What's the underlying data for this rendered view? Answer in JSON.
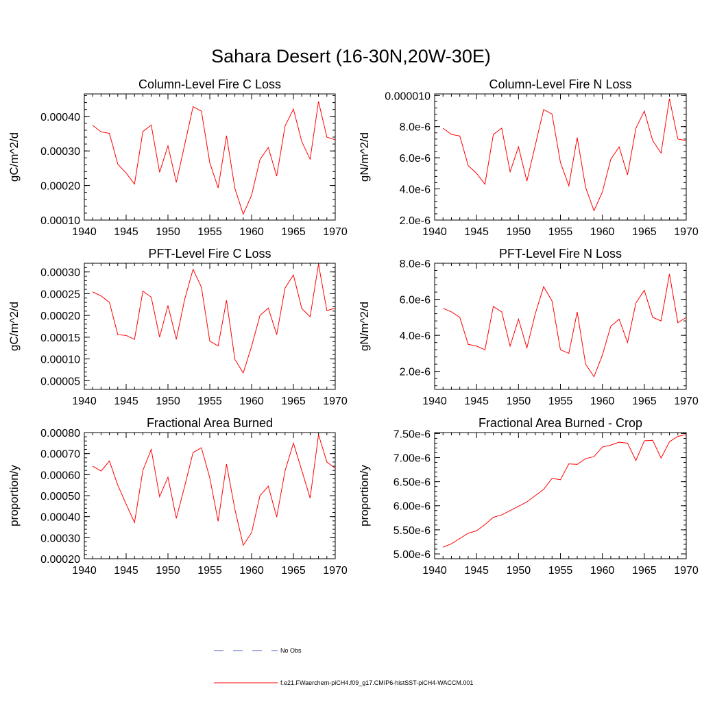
{
  "figure": {
    "title": "Sahara Desert (16-30N,20W-30E)"
  },
  "legend": {
    "obs": {
      "label": "No Obs",
      "color": "#4a5fc1"
    },
    "model": {
      "label": "f.e21.FWaerchem-piCH4.f09_g17.CMIP6-histSST-piCH4-WACCM.001",
      "color": "#ff0000"
    }
  },
  "chart_data": [
    {
      "type": "line",
      "title": "Column-Level Fire C Loss",
      "ylabel": "gC/m^2/d",
      "xlim": [
        1940,
        1970
      ],
      "ylim": [
        0.0001,
        0.000465
      ],
      "xticks": [
        1940,
        1945,
        1950,
        1955,
        1960,
        1965,
        1970
      ],
      "yticks": [
        0.0001,
        0.0002,
        0.0003,
        0.0004
      ],
      "ytick_labels": [
        "0.00010",
        "0.00020",
        "0.00030",
        "0.00040"
      ],
      "y_minor_step": 2e-05,
      "series": [
        {
          "color": "#ff0000",
          "x": [
            1941,
            1942,
            1943,
            1944,
            1945,
            1946,
            1947,
            1948,
            1949,
            1950,
            1951,
            1952,
            1953,
            1954,
            1955,
            1956,
            1957,
            1958,
            1959,
            1960,
            1961,
            1962,
            1963,
            1964,
            1965,
            1966,
            1967,
            1968,
            1969,
            1970
          ],
          "values": [
            0.000374,
            0.000355,
            0.000351,
            0.000262,
            0.000236,
            0.000204,
            0.000356,
            0.000375,
            0.000238,
            0.000315,
            0.000209,
            0.000318,
            0.000428,
            0.000415,
            0.000266,
            0.000193,
            0.000344,
            0.000192,
            0.000117,
            0.000172,
            0.000275,
            0.00031,
            0.000227,
            0.000372,
            0.000421,
            0.000327,
            0.000276,
            0.000443,
            0.00034,
            0.000332
          ]
        }
      ]
    },
    {
      "type": "line",
      "title": "Column-Level Fire N Loss",
      "ylabel": "gN/m^2/d",
      "xlim": [
        1940,
        1970
      ],
      "ylim": [
        2e-06,
        1.01e-05
      ],
      "xticks": [
        1940,
        1945,
        1950,
        1955,
        1960,
        1965,
        1970
      ],
      "yticks": [
        2e-06,
        4e-06,
        6e-06,
        8e-06,
        1e-05
      ],
      "ytick_labels": [
        "2.0e-6",
        "4.0e-6",
        "6.0e-6",
        "8.0e-6",
        "0.000010"
      ],
      "y_minor_step": 4e-07,
      "series": [
        {
          "color": "#ff0000",
          "x": [
            1941,
            1942,
            1943,
            1944,
            1945,
            1946,
            1947,
            1948,
            1949,
            1950,
            1951,
            1952,
            1953,
            1954,
            1955,
            1956,
            1957,
            1958,
            1959,
            1960,
            1961,
            1962,
            1963,
            1964,
            1965,
            1966,
            1967,
            1968,
            1969,
            1970
          ],
          "values": [
            7.9e-06,
            7.5e-06,
            7.4e-06,
            5.5e-06,
            5e-06,
            4.3e-06,
            7.5e-06,
            7.9e-06,
            5.1e-06,
            6.7e-06,
            4.5e-06,
            6.8e-06,
            9.1e-06,
            8.8e-06,
            5.7e-06,
            4.2e-06,
            7.3e-06,
            4.1e-06,
            2.6e-06,
            3.8e-06,
            5.9e-06,
            6.7e-06,
            4.9e-06,
            7.9e-06,
            9e-06,
            7.1e-06,
            6.3e-06,
            9.8e-06,
            7.2e-06,
            7.1e-06
          ]
        }
      ]
    },
    {
      "type": "line",
      "title": "PFT-Level Fire C Loss",
      "ylabel": "gC/m^2/d",
      "xlim": [
        1940,
        1970
      ],
      "ylim": [
        3e-05,
        0.00032
      ],
      "xticks": [
        1940,
        1945,
        1950,
        1955,
        1960,
        1965,
        1970
      ],
      "yticks": [
        5e-05,
        0.0001,
        0.00015,
        0.0002,
        0.00025,
        0.0003
      ],
      "ytick_labels": [
        "0.00005",
        "0.00010",
        "0.00015",
        "0.00020",
        "0.00025",
        "0.00030"
      ],
      "y_minor_step": 1e-05,
      "series": [
        {
          "color": "#ff0000",
          "x": [
            1941,
            1942,
            1943,
            1944,
            1945,
            1946,
            1947,
            1948,
            1949,
            1950,
            1951,
            1952,
            1953,
            1954,
            1955,
            1956,
            1957,
            1958,
            1959,
            1960,
            1961,
            1962,
            1963,
            1964,
            1965,
            1966,
            1967,
            1968,
            1969,
            1970
          ],
          "values": [
            0.000254,
            0.000245,
            0.00023,
            0.000156,
            0.000154,
            0.000145,
            0.000256,
            0.000242,
            0.00015,
            0.000223,
            0.000145,
            0.000237,
            0.000306,
            0.000265,
            0.000141,
            0.00013,
            0.000235,
            9.9e-05,
            6.8e-05,
            0.000129,
            0.0002,
            0.000217,
            0.000156,
            0.000263,
            0.000293,
            0.000216,
            0.000197,
            0.000318,
            0.000211,
            0.000217
          ]
        }
      ]
    },
    {
      "type": "line",
      "title": "PFT-Level Fire N Loss",
      "ylabel": "gN/m^2/d",
      "xlim": [
        1940,
        1970
      ],
      "ylim": [
        1e-06,
        8e-06
      ],
      "xticks": [
        1940,
        1945,
        1950,
        1955,
        1960,
        1965,
        1970
      ],
      "yticks": [
        2e-06,
        4e-06,
        6e-06,
        8e-06
      ],
      "ytick_labels": [
        "2.0e-6",
        "4.0e-6",
        "6.0e-6",
        "8.0e-6"
      ],
      "y_minor_step": 4e-07,
      "series": [
        {
          "color": "#ff0000",
          "x": [
            1941,
            1942,
            1943,
            1944,
            1945,
            1946,
            1947,
            1948,
            1949,
            1950,
            1951,
            1952,
            1953,
            1954,
            1955,
            1956,
            1957,
            1958,
            1959,
            1960,
            1961,
            1962,
            1963,
            1964,
            1965,
            1966,
            1967,
            1968,
            1969,
            1970
          ],
          "values": [
            5.5e-06,
            5.3e-06,
            5e-06,
            3.5e-06,
            3.4e-06,
            3.2e-06,
            5.6e-06,
            5.3e-06,
            3.4e-06,
            4.9e-06,
            3.3e-06,
            5.2e-06,
            6.7e-06,
            5.9e-06,
            3.2e-06,
            3e-06,
            5.3e-06,
            2.4e-06,
            1.7e-06,
            2.9e-06,
            4.5e-06,
            4.9e-06,
            3.6e-06,
            5.8e-06,
            6.5e-06,
            5e-06,
            4.8e-06,
            7.4e-06,
            4.7e-06,
            5e-06
          ]
        }
      ]
    },
    {
      "type": "line",
      "title": "Fractional Area Burned",
      "ylabel": "proportion/y",
      "xlim": [
        1940,
        1970
      ],
      "ylim": [
        0.0002,
        0.0008
      ],
      "xticks": [
        1940,
        1945,
        1950,
        1955,
        1960,
        1965,
        1970
      ],
      "yticks": [
        0.0002,
        0.0003,
        0.0004,
        0.0005,
        0.0006,
        0.0007,
        0.0008
      ],
      "ytick_labels": [
        "0.00020",
        "0.00030",
        "0.00040",
        "0.00050",
        "0.00060",
        "0.00070",
        "0.00080"
      ],
      "y_minor_step": 2e-05,
      "series": [
        {
          "color": "#ff0000",
          "x": [
            1941,
            1942,
            1943,
            1944,
            1945,
            1946,
            1947,
            1948,
            1949,
            1950,
            1951,
            1952,
            1953,
            1954,
            1955,
            1956,
            1957,
            1958,
            1959,
            1960,
            1961,
            1962,
            1963,
            1964,
            1965,
            1966,
            1967,
            1968,
            1969,
            1970
          ],
          "values": [
            0.00064,
            0.000617,
            0.000665,
            0.00055,
            0.00046,
            0.000372,
            0.00062,
            0.00072,
            0.000495,
            0.000588,
            0.000392,
            0.000545,
            0.000705,
            0.000728,
            0.000585,
            0.000378,
            0.00065,
            0.000435,
            0.000264,
            0.000324,
            0.0005,
            0.000545,
            0.000398,
            0.000618,
            0.00075,
            0.00062,
            0.000488,
            0.00079,
            0.00066,
            0.00063
          ]
        }
      ]
    },
    {
      "type": "line",
      "title": "Fractional Area Burned - Crop",
      "ylabel": "proportion/y",
      "xlim": [
        1940,
        1970
      ],
      "ylim": [
        4.9e-06,
        7.52e-06
      ],
      "xticks": [
        1940,
        1945,
        1950,
        1955,
        1960,
        1965,
        1970
      ],
      "yticks": [
        5e-06,
        5.5e-06,
        6e-06,
        6.5e-06,
        7e-06,
        7.5e-06
      ],
      "ytick_labels": [
        "5.00e-6",
        "5.50e-6",
        "6.00e-6",
        "6.50e-6",
        "7.00e-6",
        "7.50e-6"
      ],
      "y_minor_step": 1e-07,
      "series": [
        {
          "color": "#ff0000",
          "x": [
            1941,
            1942,
            1943,
            1944,
            1945,
            1946,
            1947,
            1948,
            1949,
            1950,
            1951,
            1952,
            1953,
            1954,
            1955,
            1956,
            1957,
            1958,
            1959,
            1960,
            1961,
            1962,
            1963,
            1964,
            1965,
            1966,
            1967,
            1968,
            1969,
            1970
          ],
          "values": [
            5.14e-06,
            5.21e-06,
            5.32e-06,
            5.43e-06,
            5.48e-06,
            5.61e-06,
            5.76e-06,
            5.81e-06,
            5.9e-06,
            5.99e-06,
            6.08e-06,
            6.21e-06,
            6.34e-06,
            6.57e-06,
            6.54e-06,
            6.87e-06,
            6.86e-06,
            6.98e-06,
            7.02e-06,
            7.22e-06,
            7.26e-06,
            7.32e-06,
            7.3e-06,
            6.94e-06,
            7.35e-06,
            7.36e-06,
            6.99e-06,
            7.33e-06,
            7.44e-06,
            7.48e-06
          ]
        }
      ]
    }
  ]
}
